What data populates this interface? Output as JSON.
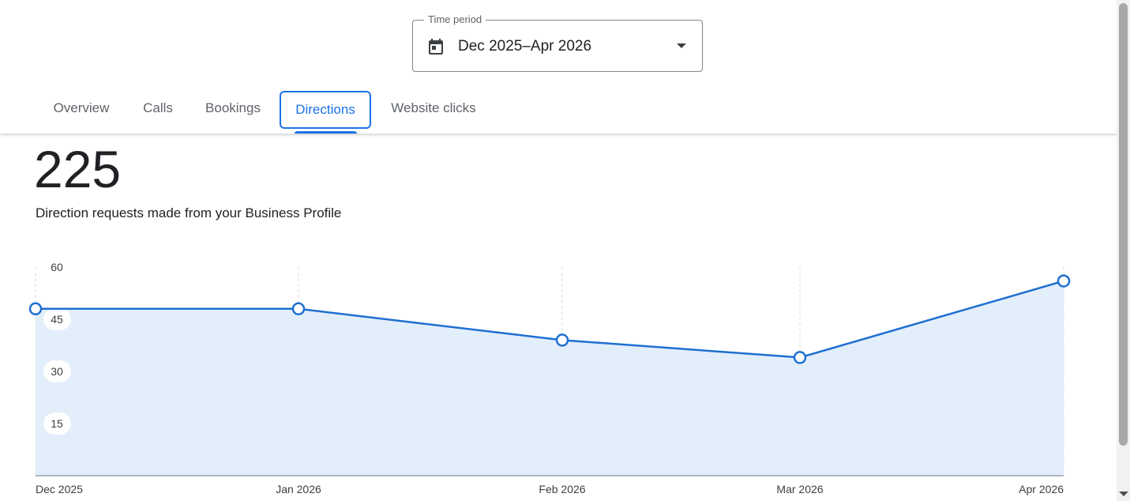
{
  "time_period": {
    "label": "Time period",
    "value": "Dec 2025–Apr 2026",
    "icon": "calendar-icon",
    "dropdown_icon": "arrow-drop-down-icon"
  },
  "tabs": [
    {
      "label": "Overview",
      "active": false
    },
    {
      "label": "Calls",
      "active": false
    },
    {
      "label": "Bookings",
      "active": false
    },
    {
      "label": "Directions",
      "active": true
    },
    {
      "label": "Website clicks",
      "active": false
    }
  ],
  "metric": {
    "value": "225",
    "caption": "Direction requests made from your Business Profile"
  },
  "colors": {
    "accent": "#1a73e8",
    "line": "#1f6fd1",
    "area": "#e3eefb",
    "text": "#202124",
    "muted": "#5f6368"
  },
  "chart_data": {
    "type": "area",
    "categories": [
      "Dec 2025",
      "Jan 2026",
      "Feb 2026",
      "Mar 2026",
      "Apr 2026"
    ],
    "series": [
      {
        "values": [
          48,
          48,
          39,
          34,
          56
        ]
      }
    ],
    "yticks": [
      "15",
      "30",
      "45",
      "60"
    ],
    "ylim": [
      0,
      60
    ],
    "grid": "vertical-dashed"
  }
}
